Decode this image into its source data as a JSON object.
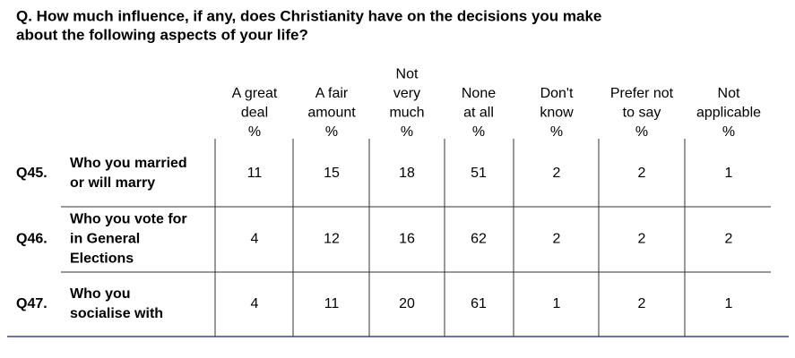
{
  "question": [
    "Q. How much influence, if any, does Christianity have on the decisions you make",
    "about the following aspects of your life?"
  ],
  "columns": [
    [
      "A great",
      "deal",
      "%"
    ],
    [
      "A fair",
      "amount",
      "%"
    ],
    [
      "Not",
      "very",
      "much",
      "%"
    ],
    [
      "None",
      "at all",
      "%"
    ],
    [
      "Don't",
      "know",
      "%"
    ],
    [
      "Prefer not",
      "to say",
      "%"
    ],
    [
      "Not",
      "applicable",
      "%"
    ]
  ],
  "rows": [
    {
      "id": "Q45.",
      "label": [
        "Who you married",
        "or will marry"
      ],
      "values": [
        11,
        15,
        18,
        51,
        2,
        2,
        1
      ]
    },
    {
      "id": "Q46.",
      "label": [
        "Who you vote for",
        "in General",
        "Elections"
      ],
      "values": [
        4,
        12,
        16,
        62,
        2,
        2,
        2
      ]
    },
    {
      "id": "Q47.",
      "label": [
        "Who you",
        "socialise with"
      ],
      "values": [
        4,
        11,
        20,
        61,
        1,
        2,
        1
      ]
    }
  ]
}
